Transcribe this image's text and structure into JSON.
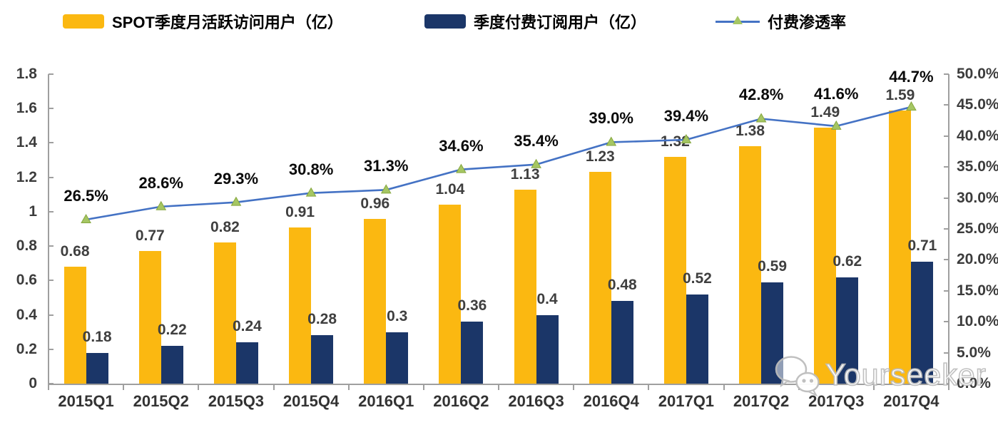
{
  "chart_data": {
    "type": "bar",
    "subtype": "grouped-bars-with-line-combo",
    "categories": [
      "2015Q1",
      "2015Q2",
      "2015Q3",
      "2015Q4",
      "2016Q1",
      "2016Q2",
      "2016Q3",
      "2016Q4",
      "2017Q1",
      "2017Q2",
      "2017Q3",
      "2017Q4"
    ],
    "series": [
      {
        "name": "SPOT季度月活跃访问用户（亿）",
        "type": "bar",
        "axis": "left",
        "color": "#FBB811",
        "values": [
          0.68,
          0.77,
          0.82,
          0.91,
          0.96,
          1.04,
          1.13,
          1.23,
          1.32,
          1.38,
          1.49,
          1.59
        ]
      },
      {
        "name": "季度付费订阅用户（亿）",
        "type": "bar",
        "axis": "left",
        "color": "#1B3668",
        "values": [
          0.18,
          0.22,
          0.24,
          0.28,
          0.3,
          0.36,
          0.4,
          0.48,
          0.52,
          0.59,
          0.62,
          0.71
        ]
      },
      {
        "name": "付费渗透率",
        "type": "line",
        "axis": "right",
        "color": "#4472C4",
        "marker": "triangle",
        "marker_color": "#A5C663",
        "marker_edge_color": "#86A73F",
        "values_pct": [
          26.5,
          28.6,
          29.3,
          30.8,
          31.3,
          34.6,
          35.4,
          39.0,
          39.4,
          42.8,
          41.6,
          44.7
        ],
        "labels": [
          "26.5%",
          "28.6%",
          "29.3%",
          "30.8%",
          "31.3%",
          "34.6%",
          "35.4%",
          "39.0%",
          "39.4%",
          "42.8%",
          "41.6%",
          "44.7%"
        ]
      }
    ],
    "left_axis": {
      "min": 0,
      "max": 1.8,
      "ticks": [
        "1.8",
        "1.6",
        "1.4",
        "1.2",
        "1",
        "0.8",
        "0.6",
        "0.4",
        "0.2",
        "0"
      ]
    },
    "right_axis": {
      "min": 0,
      "max": 50,
      "ticks": [
        "50.0%",
        "45.0%",
        "40.0%",
        "35.0%",
        "30.0%",
        "25.0%",
        "20.0%",
        "15.0%",
        "10.0%",
        "5.0%",
        "0.0%"
      ]
    },
    "grid": false,
    "legend_position": "top",
    "axis_line_color": "#9f9f9f"
  },
  "watermark": {
    "text": "Yourseeker",
    "icon": "wechat-icon"
  }
}
